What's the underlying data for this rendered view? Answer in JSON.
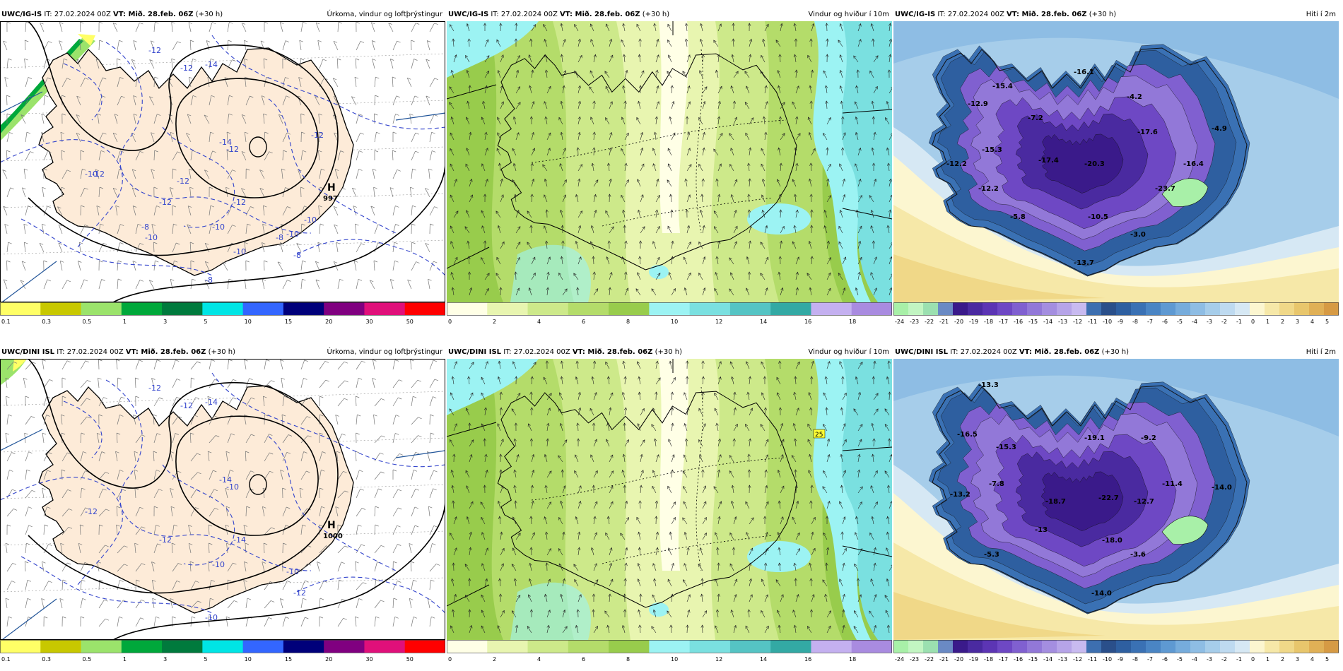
{
  "rows": [
    {
      "model": "UWC/IG-IS",
      "panels": [
        {
          "kind": "precip",
          "title": "Úrkoma, vindur og loftþrýstingur",
          "high": {
            "letter": "H",
            "value": "997"
          },
          "labels": [
            "-12",
            "-14",
            "-12",
            "-14",
            "-10",
            "-12",
            "-10",
            "-12",
            "-12",
            "-10",
            "-8",
            "-8",
            "-10",
            "-10",
            "-12",
            "-12",
            "-8",
            "-8",
            "-10",
            "-12"
          ]
        },
        {
          "kind": "wind",
          "title": "Vindur og hviður í 10m"
        },
        {
          "kind": "temp",
          "title": "Hiti í 2m",
          "labels": [
            "-15.4",
            "-16.1",
            "-12.9",
            "-7.2",
            "-4.2",
            "-4.9",
            "-15.3",
            "-17.4",
            "-20.3",
            "-17.6",
            "-16.4",
            "-12.2",
            "-12.2",
            "-23.7",
            "-5.8",
            "-10.5",
            "-3.0",
            "-13.7"
          ]
        }
      ]
    },
    {
      "model": "UWC/DINI ISL",
      "panels": [
        {
          "kind": "precip",
          "title": "Úrkoma, vindur og loftþrýstingur",
          "high": {
            "letter": "H",
            "value": "1000"
          },
          "labels": [
            "-12",
            "-14",
            "-12",
            "-14",
            "-12",
            "-10",
            "-10",
            "-12",
            "-14",
            "-10",
            "-12",
            "-10"
          ]
        },
        {
          "kind": "wind",
          "title": "Vindur og hviður í 10m",
          "marker": "25"
        },
        {
          "kind": "temp",
          "title": "Hiti í 2m",
          "labels": [
            "-13.3",
            "-16.5",
            "-19.1",
            "-9.2",
            "-15.3",
            "-7.8",
            "-11.4",
            "-14.0",
            "-13.2",
            "-18.7",
            "-22.7",
            "-12.7",
            "-13",
            "-18.0",
            "-5.3",
            "-3.6",
            "-14.0"
          ]
        }
      ]
    }
  ],
  "header": {
    "it": "IT: 27.02.2024 00Z",
    "vt": "VT: Mið. 28.feb. 06Z",
    "offset": "(+30 h)"
  },
  "scales": {
    "precip": {
      "ticks": [
        "0.1",
        "0.3",
        "0.5",
        "1",
        "3",
        "5",
        "10",
        "15",
        "20",
        "30",
        "50"
      ],
      "colors": [
        "#ffff66",
        "#c8c800",
        "#9be36b",
        "#00a83b",
        "#007a3d",
        "#00e5e5",
        "#3366ff",
        "#00007a",
        "#800080",
        "#e0107a",
        "#ff0000"
      ]
    },
    "wind": {
      "ticks": [
        "0",
        "2",
        "4",
        "6",
        "8",
        "10",
        "12",
        "14",
        "16",
        "18"
      ],
      "colors": [
        "#ffffe6",
        "#e8f5b0",
        "#cde98a",
        "#b4dc6a",
        "#98cc4c",
        "#9cf3f3",
        "#7ae0e0",
        "#55c4c4",
        "#33a9a4",
        "#c4b0f0",
        "#a98be0"
      ]
    },
    "temp": {
      "ticks": [
        "-24",
        "-23",
        "-22",
        "-21",
        "-20",
        "-19",
        "-18",
        "-17",
        "-16",
        "-15",
        "-14",
        "-13",
        "-12",
        "-11",
        "-10",
        "-9",
        "-8",
        "-7",
        "-6",
        "-5",
        "-4",
        "-3",
        "-2",
        "-1",
        "0",
        "1",
        "2",
        "3",
        "4",
        "5"
      ],
      "colors": [
        "#a8f0a8",
        "#c2f5c2",
        "#9be0b0",
        "#6a8ac4",
        "#3a1a8a",
        "#4a2aa0",
        "#5c35b4",
        "#6e48c4",
        "#8060d0",
        "#9278d8",
        "#a48ee0",
        "#b6a4e8",
        "#c8baf0",
        "#3d6fb0",
        "#2a4f8a",
        "#2e5fa0",
        "#3a71b4",
        "#4a85c4",
        "#5e99d2",
        "#76acdc",
        "#8ebde4",
        "#a6cdea",
        "#bedaf0",
        "#d6e8f4",
        "#fcf6d0",
        "#f6e8a8",
        "#f0d888",
        "#e8c66c",
        "#e0b056",
        "#d69a44"
      ]
    }
  }
}
